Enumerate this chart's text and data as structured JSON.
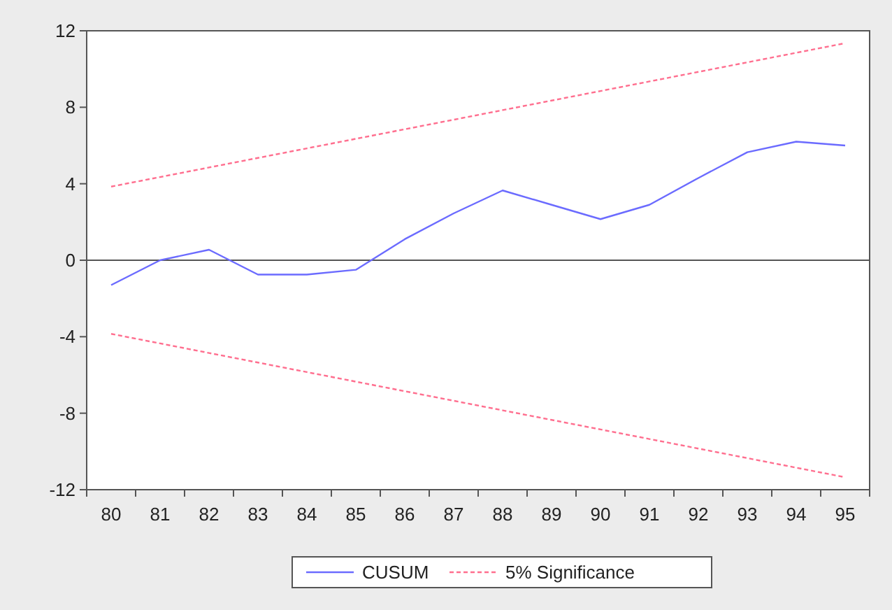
{
  "chart_data": {
    "type": "line",
    "categories": [
      "80",
      "81",
      "82",
      "83",
      "84",
      "85",
      "86",
      "87",
      "88",
      "89",
      "90",
      "91",
      "92",
      "93",
      "94",
      "95"
    ],
    "series": [
      {
        "name": "CUSUM",
        "color": "#6b6bff",
        "line_style": "solid",
        "values": [
          -1.3,
          0.0,
          0.55,
          -0.75,
          -0.75,
          -0.5,
          1.1,
          2.45,
          3.65,
          2.9,
          2.15,
          2.9,
          4.3,
          5.65,
          6.2,
          6.0
        ]
      },
      {
        "name": "5% Significance",
        "color": "#ff6f8f",
        "line_style": "dashed",
        "values": [
          3.85,
          4.35,
          4.85,
          5.35,
          5.85,
          6.35,
          6.85,
          7.35,
          7.85,
          8.35,
          8.85,
          9.35,
          9.85,
          10.35,
          10.85,
          11.35
        ]
      },
      {
        "color": "#ff6f8f",
        "line_style": "dashed",
        "values": [
          -3.85,
          -4.35,
          -4.85,
          -5.35,
          -5.85,
          -6.35,
          -6.85,
          -7.35,
          -7.85,
          -8.35,
          -8.85,
          -9.35,
          -9.85,
          -10.35,
          -10.85,
          -11.35
        ]
      }
    ],
    "ylim": [
      -12,
      12
    ],
    "yticks": [
      -12,
      -8,
      -4,
      0,
      4,
      8,
      12
    ],
    "ref_lines": [
      {
        "axis": "y",
        "value": 0,
        "color": "#555555"
      }
    ],
    "grid": false,
    "legend": "bottom",
    "marker": "none"
  }
}
